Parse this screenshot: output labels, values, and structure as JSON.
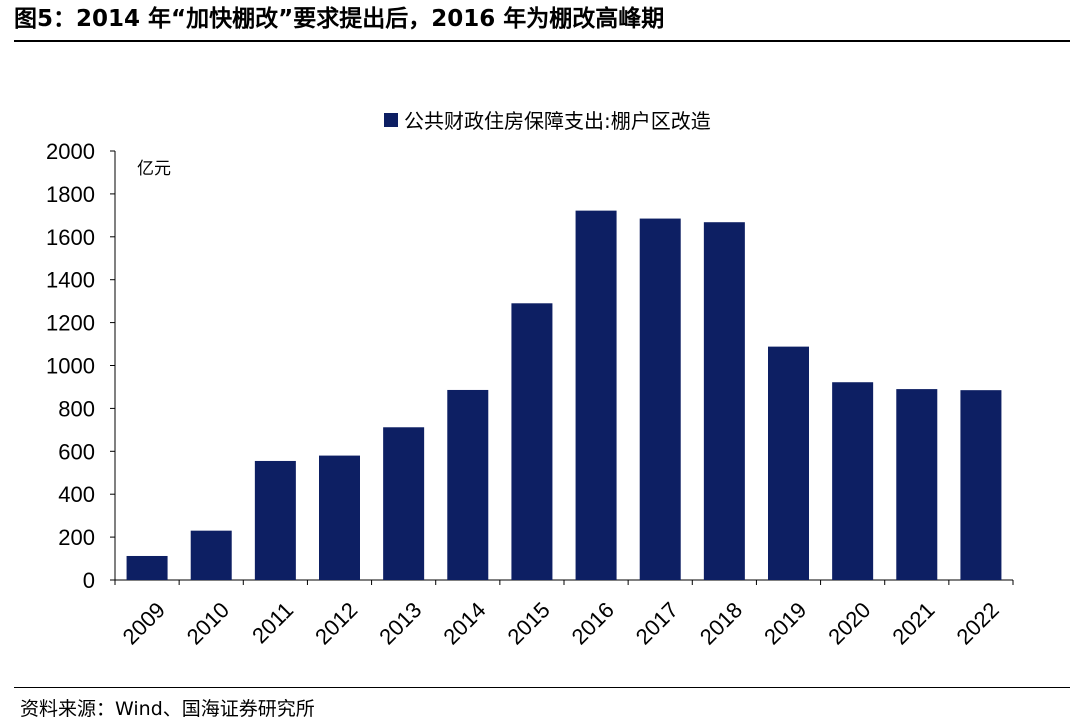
{
  "figure": {
    "title": "图5：2014 年“加快棚改”要求提出后，2016 年为棚改高峰期",
    "source": "资料来源：Wind、国海证券研究所"
  },
  "chart_data": {
    "type": "bar",
    "title": "",
    "unit_label": "亿元",
    "xlabel": "",
    "ylabel": "",
    "categories": [
      "2009",
      "2010",
      "2011",
      "2012",
      "2013",
      "2014",
      "2015",
      "2016",
      "2017",
      "2018",
      "2019",
      "2020",
      "2021",
      "2022"
    ],
    "series": [
      {
        "name": "公共财政住房保障支出:棚户区改造",
        "color": "#0d1f63",
        "values": [
          112,
          230,
          555,
          580,
          712,
          886,
          1290,
          1722,
          1685,
          1668,
          1088,
          922,
          890,
          885
        ]
      }
    ],
    "ylim": [
      0,
      2000
    ],
    "yticks": [
      0,
      200,
      400,
      600,
      800,
      1000,
      1200,
      1400,
      1600,
      1800,
      2000
    ],
    "grid": false,
    "legend_position": "top-right",
    "x_tick_rotation": "-45deg"
  }
}
